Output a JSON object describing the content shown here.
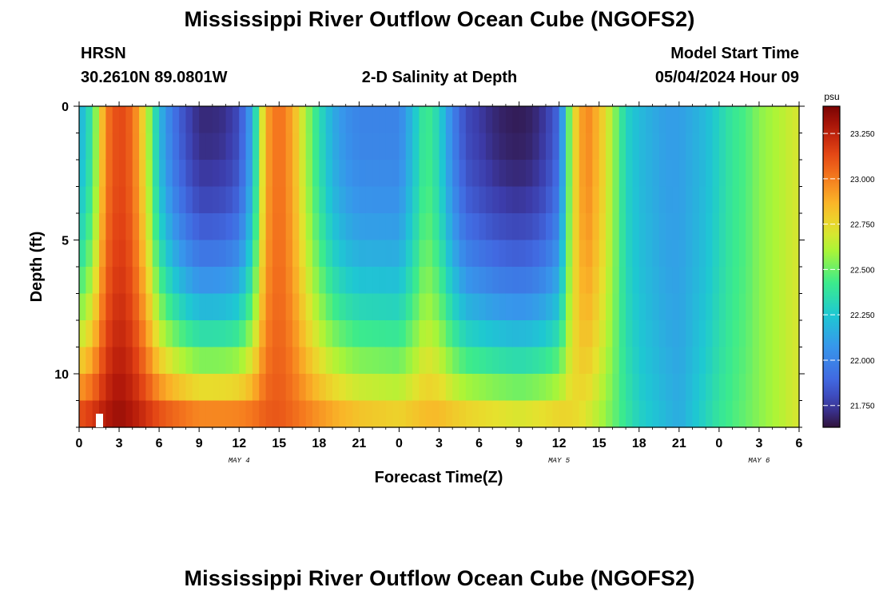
{
  "header": {
    "title": "Mississippi River Outflow Ocean Cube (NGOFS2)",
    "station": "HRSN",
    "coords": "30.2610N  89.0801W",
    "subtitle": "2-D Salinity at Depth",
    "start_label": "Model Start Time",
    "start_value": "05/04/2024 Hour 09"
  },
  "footer": {
    "title": "Mississippi River Outflow Ocean Cube (NGOFS2)"
  },
  "chart_data": {
    "type": "heatmap",
    "title": "2-D Salinity at Depth",
    "xlabel": "Forecast Time(Z)",
    "ylabel": "Depth (ft)",
    "x_tick_labels": [
      "0",
      "3",
      "6",
      "9",
      "12",
      "15",
      "18",
      "21",
      "0",
      "3",
      "6",
      "9",
      "12",
      "15",
      "18",
      "21",
      "0",
      "3",
      "6"
    ],
    "x_hours": [
      0,
      3,
      6,
      9,
      12,
      15,
      18,
      21,
      24,
      27,
      30,
      33,
      36,
      39,
      42,
      45,
      48,
      51,
      54
    ],
    "x_range_hours": [
      0,
      54
    ],
    "date_labels": [
      {
        "label": "MAY 4",
        "hour": 12
      },
      {
        "label": "MAY 5",
        "hour": 36
      },
      {
        "label": "MAY 6",
        "hour": 51
      }
    ],
    "y_tick_labels": [
      "0",
      "5",
      "10"
    ],
    "y_ticks_ft": [
      0,
      5,
      10
    ],
    "y_range_ft": [
      0,
      12
    ],
    "colorbar": {
      "unit": "psu",
      "range": [
        21.63,
        23.4
      ],
      "tick_values": [
        21.75,
        22.0,
        22.25,
        22.5,
        22.75,
        23.0,
        23.25
      ],
      "tick_labels": [
        "21.750",
        "22.000",
        "22.250",
        "22.500",
        "22.750",
        "23.000",
        "23.250"
      ]
    },
    "grid": false,
    "surface_salinity_psu_by_hour": [
      [
        0,
        22.15
      ],
      [
        1,
        22.4
      ],
      [
        2,
        23.0
      ],
      [
        3,
        23.15
      ],
      [
        4,
        23.05
      ],
      [
        5,
        22.7
      ],
      [
        6,
        22.2
      ],
      [
        7,
        21.95
      ],
      [
        8,
        21.8
      ],
      [
        9,
        21.7
      ],
      [
        10,
        21.7
      ],
      [
        11,
        21.72
      ],
      [
        12,
        21.8
      ],
      [
        13,
        22.15
      ],
      [
        14,
        22.9
      ],
      [
        15,
        23.05
      ],
      [
        16,
        22.9
      ],
      [
        17,
        22.6
      ],
      [
        18,
        22.35
      ],
      [
        19,
        22.15
      ],
      [
        20,
        22.05
      ],
      [
        21,
        22.0
      ],
      [
        22,
        22.0
      ],
      [
        23,
        22.0
      ],
      [
        24,
        22.0
      ],
      [
        25,
        22.2
      ],
      [
        26,
        22.45
      ],
      [
        27,
        22.3
      ],
      [
        28,
        22.0
      ],
      [
        29,
        21.8
      ],
      [
        30,
        21.75
      ],
      [
        31,
        21.7
      ],
      [
        32,
        21.67
      ],
      [
        33,
        21.66
      ],
      [
        34,
        21.68
      ],
      [
        35,
        21.75
      ],
      [
        36,
        21.9
      ],
      [
        37,
        22.7
      ],
      [
        38,
        23.0
      ],
      [
        39,
        22.85
      ],
      [
        40,
        22.6
      ],
      [
        41,
        22.3
      ],
      [
        42,
        22.2
      ],
      [
        43,
        22.15
      ],
      [
        44,
        22.1
      ],
      [
        45,
        22.1
      ],
      [
        46,
        22.15
      ],
      [
        47,
        22.2
      ],
      [
        48,
        22.3
      ],
      [
        49,
        22.4
      ],
      [
        50,
        22.45
      ],
      [
        51,
        22.55
      ],
      [
        52,
        22.6
      ],
      [
        53,
        22.65
      ],
      [
        54,
        22.7
      ]
    ],
    "bottom_salinity_psu_by_hour": [
      [
        0,
        23.2
      ],
      [
        3,
        23.35
      ],
      [
        6,
        23.2
      ],
      [
        9,
        23.1
      ],
      [
        12,
        23.1
      ],
      [
        15,
        23.1
      ],
      [
        18,
        23.0
      ],
      [
        21,
        22.9
      ],
      [
        24,
        22.85
      ],
      [
        27,
        22.9
      ],
      [
        30,
        22.85
      ],
      [
        33,
        22.8
      ],
      [
        36,
        22.85
      ],
      [
        39,
        22.6
      ],
      [
        42,
        22.3
      ],
      [
        45,
        22.15
      ],
      [
        48,
        22.4
      ],
      [
        51,
        22.55
      ],
      [
        54,
        22.7
      ]
    ]
  }
}
